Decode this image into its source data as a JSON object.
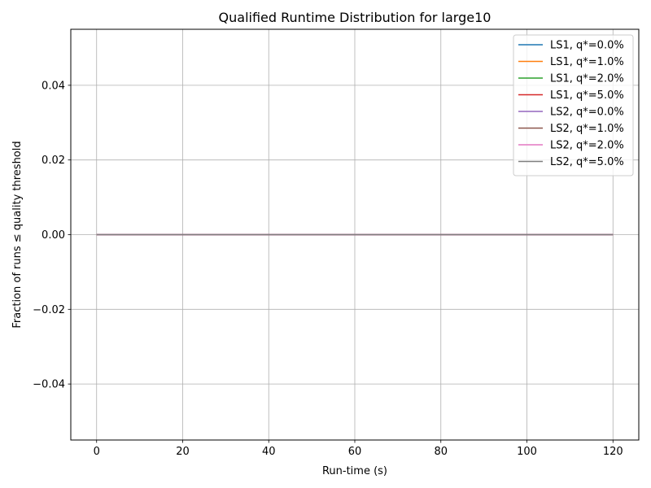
{
  "chart_data": {
    "type": "line",
    "title": "Qualified Runtime Distribution for large10",
    "xlabel": "Run-time (s)",
    "ylabel": "Fraction of runs ≤ quality threshold",
    "xlim": [
      -6,
      126
    ],
    "ylim": [
      -0.055,
      0.055
    ],
    "xticks": [
      0,
      20,
      40,
      60,
      80,
      100,
      120
    ],
    "xtick_labels": [
      "0",
      "20",
      "40",
      "60",
      "80",
      "100",
      "120"
    ],
    "yticks": [
      -0.04,
      -0.02,
      0.0,
      0.02,
      0.04
    ],
    "ytick_labels": [
      "−0.04",
      "−0.02",
      "0.00",
      "0.02",
      "0.04"
    ],
    "grid": true,
    "legend_position": "upper right",
    "x": [
      0,
      120
    ],
    "series": [
      {
        "name": "LS1, q*=0.0%",
        "color": "#1f77b4",
        "values": [
          0,
          0
        ]
      },
      {
        "name": "LS1, q*=1.0%",
        "color": "#ff7f0e",
        "values": [
          0,
          0
        ]
      },
      {
        "name": "LS1, q*=2.0%",
        "color": "#2ca02c",
        "values": [
          0,
          0
        ]
      },
      {
        "name": "LS1, q*=5.0%",
        "color": "#d62728",
        "values": [
          0,
          0
        ]
      },
      {
        "name": "LS2, q*=0.0%",
        "color": "#9467bd",
        "values": [
          0,
          0
        ]
      },
      {
        "name": "LS2, q*=1.0%",
        "color": "#8c564b",
        "values": [
          0,
          0
        ]
      },
      {
        "name": "LS2, q*=2.0%",
        "color": "#e377c2",
        "values": [
          0,
          0
        ]
      },
      {
        "name": "LS2, q*=5.0%",
        "color": "#7f7f7f",
        "values": [
          0,
          0
        ]
      }
    ]
  }
}
